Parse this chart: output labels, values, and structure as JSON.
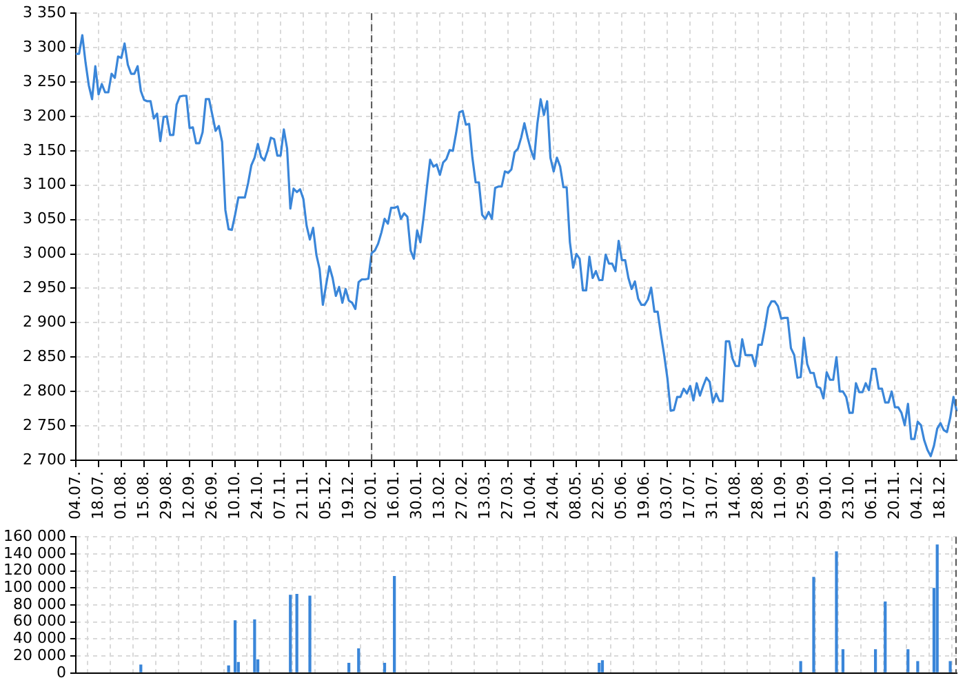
{
  "chart_data": [
    {
      "type": "line",
      "color": "#3a86d9",
      "categories": [
        "04.07.",
        null,
        null,
        null,
        null,
        null,
        null,
        "18.07.",
        null,
        null,
        null,
        null,
        null,
        null,
        "01.08.",
        null,
        null,
        null,
        null,
        null,
        null,
        "15.08.",
        null,
        null,
        null,
        null,
        null,
        null,
        "29.08.",
        null,
        null,
        null,
        null,
        null,
        null,
        "12.09.",
        null,
        null,
        null,
        null,
        null,
        null,
        "26.09.",
        null,
        null,
        null,
        null,
        null,
        null,
        "10.10.",
        null,
        null,
        null,
        null,
        null,
        null,
        "24.10.",
        null,
        null,
        null,
        null,
        null,
        null,
        "07.11.",
        null,
        null,
        null,
        null,
        null,
        null,
        "21.11.",
        null,
        null,
        null,
        null,
        null,
        null,
        "05.12.",
        null,
        null,
        null,
        null,
        null,
        null,
        "19.12.",
        null,
        null,
        null,
        null,
        null,
        null,
        "02.01.",
        null,
        null,
        null,
        null,
        null,
        null,
        "16.01.",
        null,
        null,
        null,
        null,
        null,
        null,
        "30.01.",
        null,
        null,
        null,
        null,
        null,
        null,
        "13.02.",
        null,
        null,
        null,
        null,
        null,
        null,
        "27.02.",
        null,
        null,
        null,
        null,
        null,
        null,
        "13.03.",
        null,
        null,
        null,
        null,
        null,
        null,
        "27.03.",
        null,
        null,
        null,
        null,
        null,
        null,
        "10.04.",
        null,
        null,
        null,
        null,
        null,
        null,
        "24.04.",
        null,
        null,
        null,
        null,
        null,
        null,
        "08.05.",
        null,
        null,
        null,
        null,
        null,
        null,
        "22.05.",
        null,
        null,
        null,
        null,
        null,
        null,
        "05.06.",
        null,
        null,
        null,
        null,
        null,
        null,
        "19.06.",
        null,
        null,
        null,
        null,
        null,
        null,
        "03.07.",
        null,
        null,
        null,
        null,
        null,
        null,
        "17.07.",
        null,
        null,
        null,
        null,
        null,
        null,
        "31.07.",
        null,
        null,
        null,
        null,
        null,
        null,
        "14.08.",
        null,
        null,
        null,
        null,
        null,
        null,
        "28.08.",
        null,
        null,
        null,
        null,
        null,
        null,
        "11.09.",
        null,
        null,
        null,
        null,
        null,
        null,
        "25.09.",
        null,
        null,
        null,
        null,
        null,
        null,
        "09.10.",
        null,
        null,
        null,
        null,
        null,
        null,
        "23.10.",
        null,
        null,
        null,
        null,
        null,
        null,
        "06.11.",
        null,
        null,
        null,
        null,
        null,
        null,
        "20.11.",
        null,
        null,
        null,
        null,
        null,
        null,
        "04.12.",
        null,
        null,
        null,
        null,
        null,
        null,
        "18.12.",
        null,
        null,
        null,
        null,
        null
      ],
      "values": [
        3291,
        3291,
        3318,
        3278,
        3245,
        3225,
        3273,
        3232,
        3247,
        3235,
        3235,
        3262,
        3256,
        3287,
        3285,
        3306,
        3275,
        3262,
        3262,
        3273,
        3237,
        3224,
        3222,
        3222,
        3197,
        3204,
        3164,
        3199,
        3200,
        3173,
        3173,
        3217,
        3229,
        3230,
        3230,
        3183,
        3184,
        3161,
        3161,
        3177,
        3225,
        3225,
        3202,
        3179,
        3186,
        3163,
        3064,
        3036,
        3035,
        3057,
        3082,
        3082,
        3082,
        3103,
        3129,
        3140,
        3160,
        3141,
        3136,
        3150,
        3169,
        3167,
        3143,
        3143,
        3181,
        3153,
        3066,
        3095,
        3090,
        3094,
        3080,
        3041,
        3021,
        3038,
        2999,
        2978,
        2926,
        2955,
        2982,
        2965,
        2939,
        2952,
        2929,
        2949,
        2932,
        2929,
        2920,
        2959,
        2963,
        2963,
        2964,
        3001,
        3005,
        3015,
        3031,
        3051,
        3044,
        3067,
        3067,
        3069,
        3051,
        3059,
        3054,
        3005,
        2993,
        3034,
        3017,
        3054,
        3097,
        3137,
        3127,
        3130,
        3115,
        3133,
        3138,
        3151,
        3150,
        3176,
        3206,
        3208,
        3188,
        3189,
        3140,
        3104,
        3104,
        3057,
        3051,
        3061,
        3051,
        3096,
        3098,
        3098,
        3120,
        3118,
        3123,
        3148,
        3153,
        3169,
        3190,
        3169,
        3151,
        3138,
        3190,
        3225,
        3202,
        3222,
        3140,
        3120,
        3140,
        3127,
        3097,
        3097,
        3017,
        2980,
        3000,
        2993,
        2947,
        2947,
        2996,
        2965,
        2975,
        2962,
        2962,
        2999,
        2986,
        2986,
        2975,
        3019,
        2991,
        2991,
        2965,
        2949,
        2960,
        2935,
        2926,
        2926,
        2934,
        2951,
        2916,
        2916,
        2883,
        2853,
        2819,
        2772,
        2773,
        2792,
        2792,
        2804,
        2797,
        2808,
        2787,
        2812,
        2794,
        2808,
        2820,
        2814,
        2784,
        2797,
        2786,
        2786,
        2873,
        2873,
        2848,
        2837,
        2837,
        2876,
        2853,
        2853,
        2853,
        2837,
        2868,
        2868,
        2893,
        2922,
        2931,
        2931,
        2924,
        2906,
        2907,
        2907,
        2863,
        2853,
        2820,
        2821,
        2878,
        2840,
        2827,
        2827,
        2807,
        2805,
        2790,
        2828,
        2817,
        2817,
        2850,
        2800,
        2800,
        2792,
        2769,
        2769,
        2812,
        2799,
        2799,
        2812,
        2802,
        2833,
        2833,
        2804,
        2804,
        2784,
        2784,
        2800,
        2777,
        2777,
        2769,
        2751,
        2782,
        2731,
        2731,
        2756,
        2751,
        2729,
        2715,
        2706,
        2721,
        2746,
        2754,
        2744,
        2741,
        2762,
        2792,
        2771
      ],
      "ylim": [
        2700,
        3350
      ],
      "yticks": [
        {
          "value": 2700,
          "label": "2 700"
        },
        {
          "value": 2750,
          "label": "2 750"
        },
        {
          "value": 2800,
          "label": "2 800"
        },
        {
          "value": 2850,
          "label": "2 850"
        },
        {
          "value": 2900,
          "label": "2 900"
        },
        {
          "value": 2950,
          "label": "2 950"
        },
        {
          "value": 3000,
          "label": "3 000"
        },
        {
          "value": 3050,
          "label": "3 050"
        },
        {
          "value": 3100,
          "label": "3 100"
        },
        {
          "value": 3150,
          "label": "3 150"
        },
        {
          "value": 3200,
          "label": "3 200"
        },
        {
          "value": 3250,
          "label": "3 250"
        },
        {
          "value": 3300,
          "label": "3 300"
        },
        {
          "value": 3350,
          "label": "3 350"
        }
      ],
      "grid": true,
      "ref_lines": [
        {
          "axis": "x",
          "value": "02.01.",
          "color": "#555555",
          "line_style": "dashed"
        }
      ]
    },
    {
      "type": "bar",
      "color": "#3a86d9",
      "categories": [
        "04.07.",
        null,
        null,
        null,
        null,
        null,
        null,
        "18.07.",
        null,
        null,
        null,
        null,
        null,
        null,
        "01.08.",
        null,
        null,
        null,
        null,
        null,
        null,
        "15.08.",
        null,
        null,
        null,
        null,
        null,
        null,
        "29.08.",
        null,
        null,
        null,
        null,
        null,
        null,
        "12.09.",
        null,
        null,
        null,
        null,
        null,
        null,
        "26.09.",
        null,
        null,
        null,
        null,
        null,
        null,
        "10.10.",
        null,
        null,
        null,
        null,
        null,
        null,
        "24.10.",
        null,
        null,
        null,
        null,
        null,
        null,
        "07.11.",
        null,
        null,
        null,
        null,
        null,
        null,
        "21.11.",
        null,
        null,
        null,
        null,
        null,
        null,
        "05.12.",
        null,
        null,
        null,
        null,
        null,
        null,
        "19.12.",
        null,
        null,
        null,
        null,
        null,
        null,
        "02.01.",
        null,
        null,
        null,
        null,
        null,
        null,
        "16.01.",
        null,
        null,
        null,
        null,
        null,
        null,
        "30.01.",
        null,
        null,
        null,
        null,
        null,
        null,
        "13.02.",
        null,
        null,
        null,
        null,
        null,
        null,
        "27.02.",
        null,
        null,
        null,
        null,
        null,
        null,
        "13.03.",
        null,
        null,
        null,
        null,
        null,
        null,
        "27.03.",
        null,
        null,
        null,
        null,
        null,
        null,
        "10.04.",
        null,
        null,
        null,
        null,
        null,
        null,
        "24.04.",
        null,
        null,
        null,
        null,
        null,
        null,
        "08.05.",
        null,
        null,
        null,
        null,
        null,
        null,
        "22.05.",
        null,
        null,
        null,
        null,
        null,
        null,
        "05.06.",
        null,
        null,
        null,
        null,
        null,
        null,
        "19.06.",
        null,
        null,
        null,
        null,
        null,
        null,
        "03.07.",
        null,
        null,
        null,
        null,
        null,
        null,
        "17.07.",
        null,
        null,
        null,
        null,
        null,
        null,
        "31.07.",
        null,
        null,
        null,
        null,
        null,
        null,
        "14.08.",
        null,
        null,
        null,
        null,
        null,
        null,
        "28.08.",
        null,
        null,
        null,
        null,
        null,
        null,
        "11.09.",
        null,
        null,
        null,
        null,
        null,
        null,
        "25.09.",
        null,
        null,
        null,
        null,
        null,
        null,
        "09.10.",
        null,
        null,
        null,
        null,
        null,
        null,
        "23.10.",
        null,
        null,
        null,
        null,
        null,
        null,
        "06.11.",
        null,
        null,
        null,
        null,
        null,
        null,
        "20.11.",
        null,
        null,
        null,
        null,
        null,
        null,
        "04.12.",
        null,
        null,
        null,
        null,
        null,
        null,
        "18.12.",
        null,
        null,
        null,
        null,
        null
      ],
      "values": [
        null,
        null,
        null,
        null,
        null,
        null,
        null,
        null,
        null,
        null,
        null,
        null,
        null,
        null,
        null,
        null,
        null,
        null,
        null,
        null,
        10000,
        null,
        null,
        null,
        null,
        null,
        null,
        null,
        null,
        null,
        null,
        null,
        null,
        null,
        null,
        null,
        null,
        null,
        null,
        null,
        null,
        null,
        null,
        null,
        null,
        null,
        null,
        9000,
        null,
        62000,
        13000,
        null,
        null,
        null,
        null,
        63000,
        16000,
        null,
        null,
        null,
        null,
        null,
        null,
        null,
        null,
        null,
        92000,
        null,
        93000,
        null,
        null,
        null,
        91000,
        null,
        null,
        null,
        null,
        null,
        null,
        null,
        null,
        null,
        null,
        null,
        12000,
        null,
        null,
        29000,
        null,
        null,
        null,
        null,
        null,
        null,
        null,
        12000,
        null,
        null,
        114000,
        null,
        null,
        null,
        null,
        null,
        null,
        null,
        null,
        null,
        null,
        null,
        null,
        null,
        null,
        null,
        null,
        null,
        null,
        null,
        null,
        null,
        null,
        null,
        null,
        null,
        null,
        null,
        null,
        null,
        null,
        null,
        null,
        null,
        null,
        null,
        null,
        null,
        null,
        null,
        null,
        null,
        null,
        null,
        null,
        null,
        null,
        null,
        null,
        null,
        null,
        null,
        null,
        null,
        null,
        null,
        null,
        null,
        null,
        null,
        null,
        null,
        null,
        12000,
        15000,
        null,
        null,
        null,
        null,
        null,
        null,
        null,
        null,
        null,
        null,
        null,
        null,
        null,
        null,
        null,
        null,
        null,
        null,
        null,
        null,
        null,
        null,
        null,
        null,
        null,
        null,
        null,
        null,
        null,
        null,
        null,
        null,
        null,
        null,
        null,
        null,
        null,
        null,
        null,
        null,
        null,
        null,
        null,
        null,
        null,
        null,
        null,
        null,
        null,
        null,
        null,
        null,
        null,
        null,
        null,
        null,
        null,
        null,
        null,
        null,
        14000,
        null,
        null,
        null,
        113000,
        null,
        null,
        null,
        null,
        null,
        null,
        143000,
        null,
        28000,
        null,
        null,
        null,
        null,
        null,
        null,
        null,
        null,
        null,
        28000,
        null,
        null,
        84000,
        null,
        null,
        null,
        null,
        null,
        null,
        28000,
        null,
        null,
        14000,
        null,
        null,
        null,
        null,
        100000,
        151000,
        null,
        null,
        null,
        14000,
        null,
        null
      ],
      "ylim": [
        0,
        160000
      ],
      "yticks": [
        0,
        {
          "value": 20000,
          "label": "20 000"
        },
        {
          "value": 40000,
          "label": "40 000"
        },
        {
          "value": 60000,
          "label": "60 000"
        },
        {
          "value": 80000,
          "label": "80 000"
        },
        {
          "value": 100000,
          "label": "100 000"
        },
        {
          "value": 120000,
          "label": "120 000"
        },
        {
          "value": 140000,
          "label": "140 000"
        },
        {
          "value": 160000,
          "label": "160 000"
        }
      ],
      "grid": true,
      "tick_labels": "y"
    }
  ]
}
